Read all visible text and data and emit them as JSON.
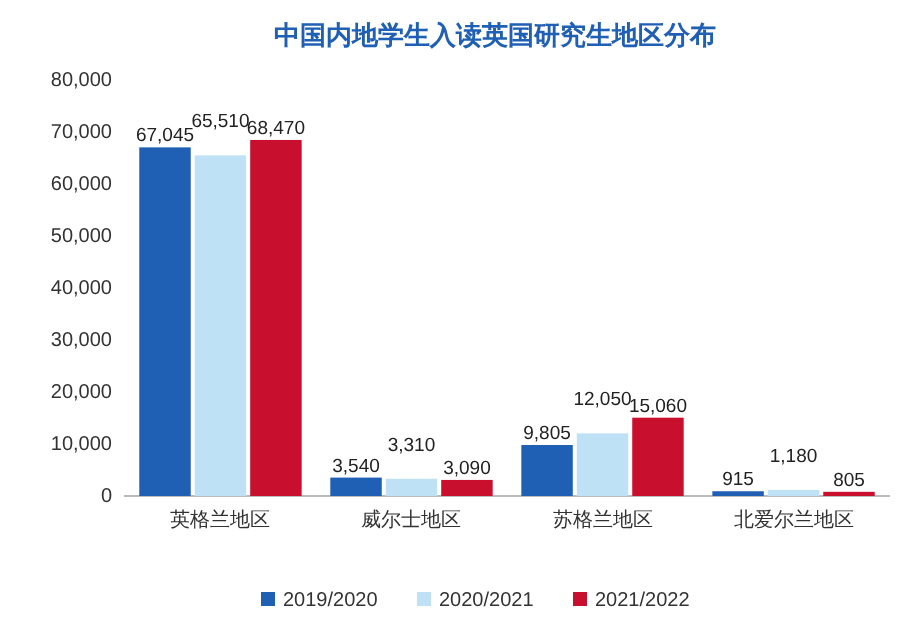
{
  "chart_data": {
    "type": "bar",
    "title": "中国内地学生入读英国研究生地区分布",
    "categories": [
      "英格兰地区",
      "威尔士地区",
      "苏格兰地区",
      "北爱尔兰地区"
    ],
    "series": [
      {
        "name": "2019/2020",
        "color": "#1f5fb4",
        "values": [
          67045,
          3540,
          9805,
          915
        ],
        "value_labels": [
          "67,045",
          "3,540",
          "9,805",
          "915"
        ]
      },
      {
        "name": "2020/2021",
        "color": "#bfe1f5",
        "values": [
          65510,
          3310,
          12050,
          1180
        ],
        "value_labels": [
          "65,510",
          "3,310",
          "12,050",
          "1,180"
        ]
      },
      {
        "name": "2021/2022",
        "color": "#c8102e",
        "values": [
          68470,
          3090,
          15060,
          805
        ],
        "value_labels": [
          "68,470",
          "3,090",
          "15,060",
          "805"
        ]
      }
    ],
    "ylim": [
      0,
      80000
    ],
    "yticks": [
      0,
      {
        "value": 10000,
        "label": "10,000"
      },
      {
        "value": 20000,
        "label": "20,000"
      },
      {
        "value": 30000,
        "label": "30,000"
      },
      {
        "value": 40000,
        "label": "40,000"
      },
      {
        "value": 50000,
        "label": "50,000"
      },
      {
        "value": 60000,
        "label": "60,000"
      },
      {
        "value": 70000,
        "label": "70,000"
      },
      {
        "value": 80000,
        "label": "80,000"
      }
    ],
    "legend": "bottom"
  }
}
